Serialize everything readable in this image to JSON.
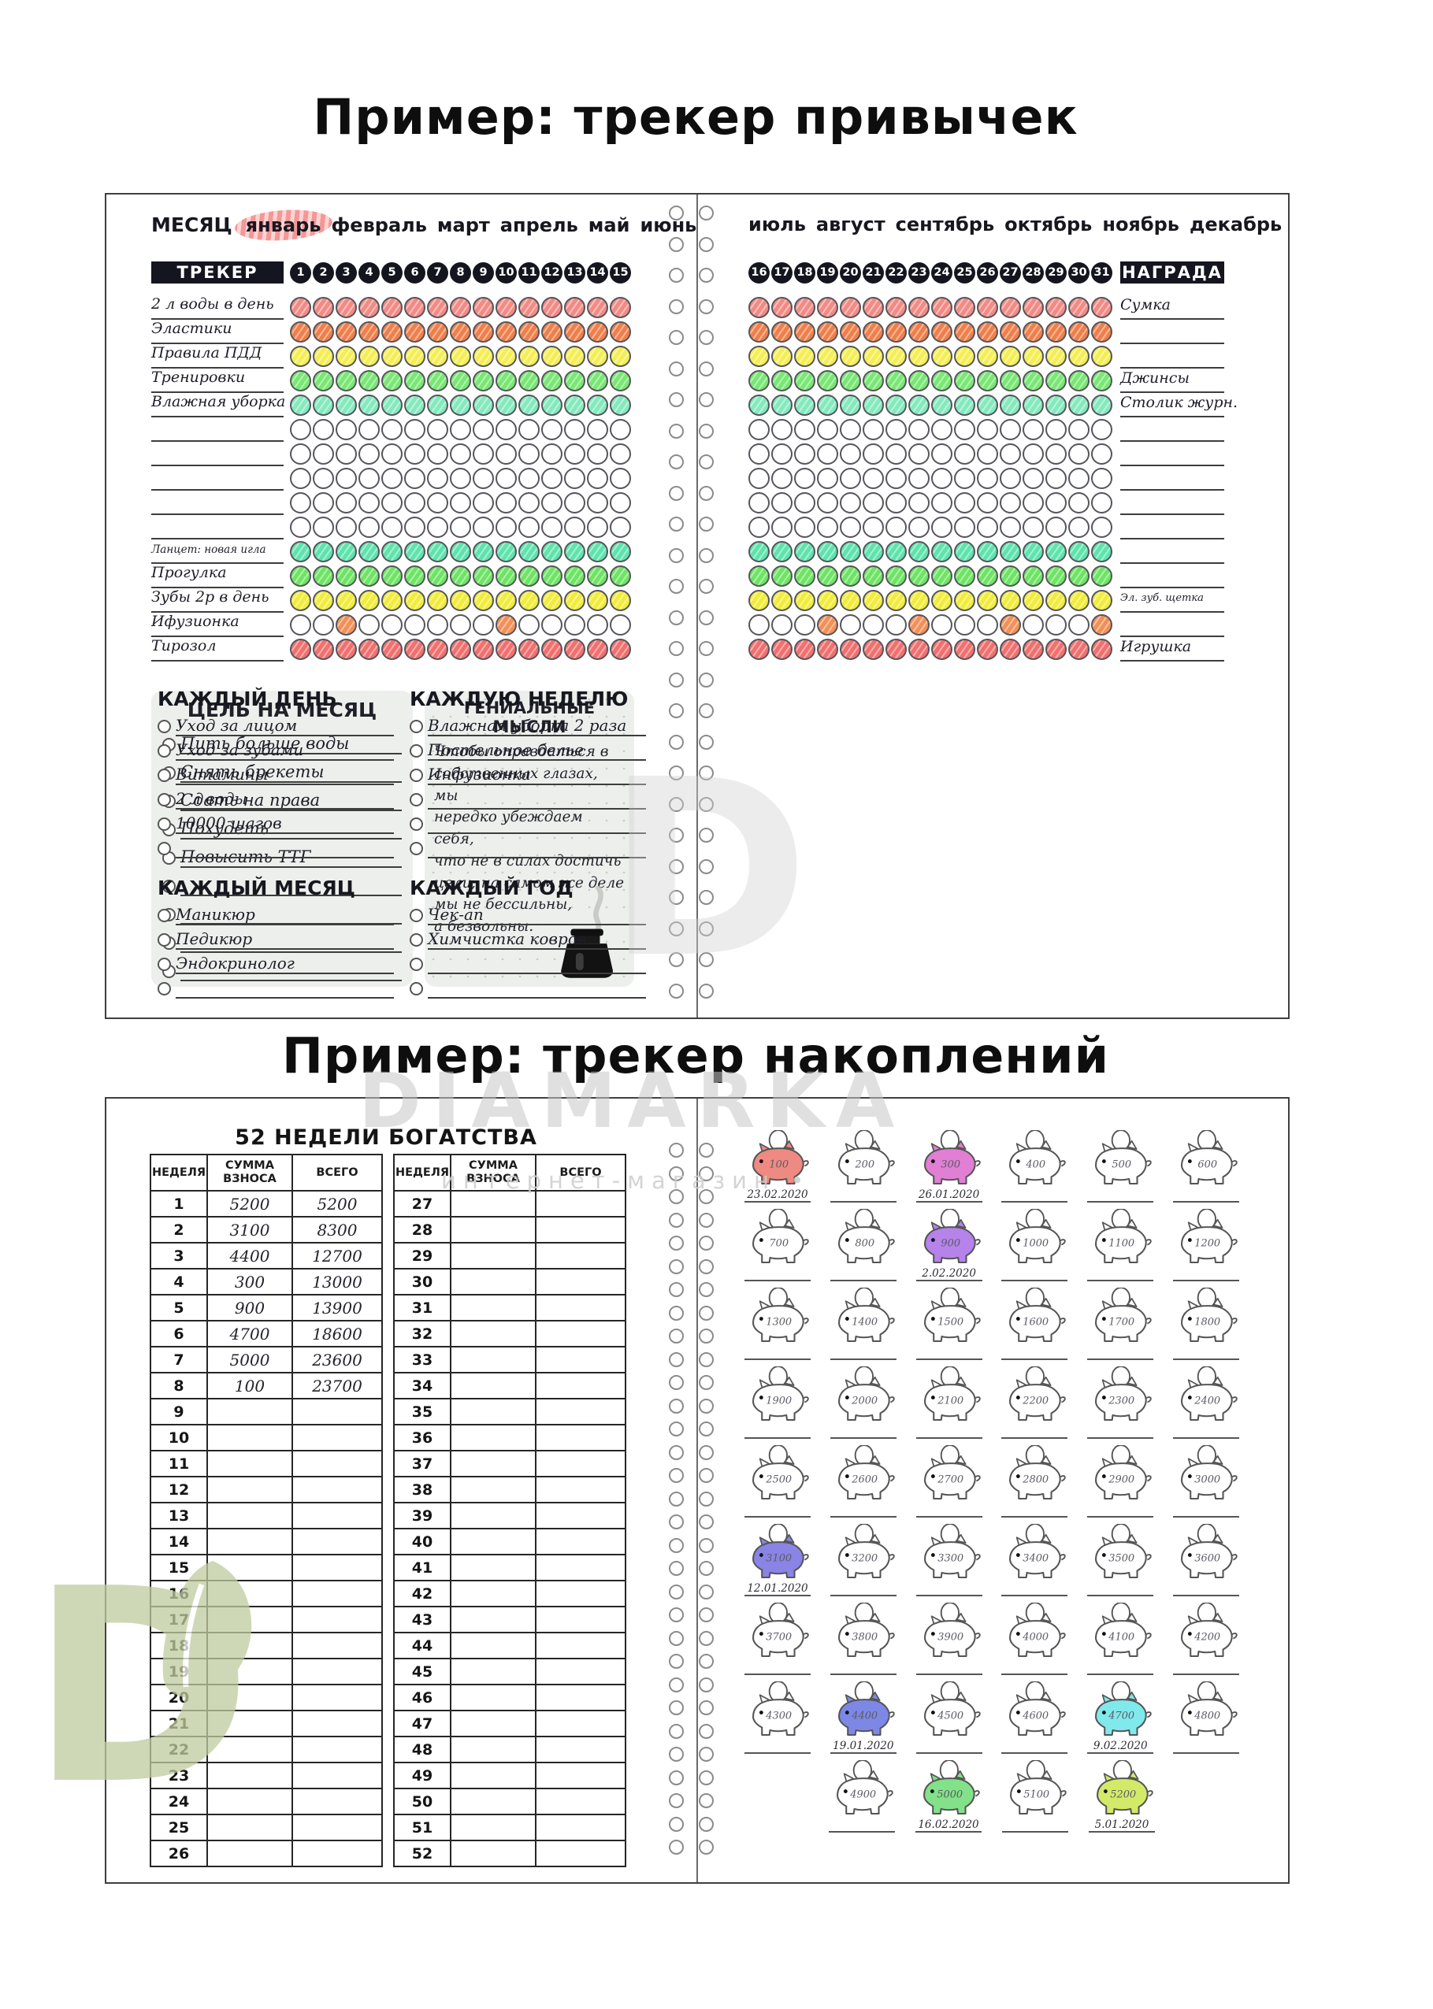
{
  "page": {
    "title_habit": "Пример: трекер привычек",
    "title_savings": "Пример: трекер накоплений"
  },
  "watermarks": {
    "brand": "DIAMARKA",
    "shop": "интернет-магазин •",
    "letter": "D"
  },
  "habit": {
    "month_label": "МЕСЯЦ",
    "months_left": [
      "январь",
      "февраль",
      "март",
      "апрель",
      "май",
      "июнь"
    ],
    "highlighted_month_index": 0,
    "highlight_color": "#f28282",
    "months_right": [
      "июль",
      "август",
      "сентябрь",
      "октябрь",
      "ноябрь",
      "декабрь"
    ],
    "tracker_label": "ТРЕКЕР",
    "award_label": "НАГРАДА",
    "days_left": [
      "1",
      "2",
      "3",
      "4",
      "5",
      "6",
      "7",
      "8",
      "9",
      "10",
      "11",
      "12",
      "13",
      "14",
      "15"
    ],
    "days_right": [
      "16",
      "17",
      "18",
      "19",
      "20",
      "21",
      "22",
      "23",
      "24",
      "25",
      "26",
      "27",
      "28",
      "29",
      "30",
      "31"
    ],
    "rows": [
      {
        "label": "2 л воды в день",
        "color": "#f28b85",
        "left": "all",
        "right": "all",
        "award": "Сумка"
      },
      {
        "label": "Эластики",
        "color": "#ef7f4a",
        "left": "all",
        "right": "all",
        "award": ""
      },
      {
        "label": "Правила ПДД",
        "color": "#f4ee55",
        "left": "all",
        "right": "all",
        "award": ""
      },
      {
        "label": "Тренировки",
        "color": "#79e774",
        "left": "all",
        "right": "all",
        "award": "Джинсы"
      },
      {
        "label": "Влажная уборка",
        "color": "#84eabd",
        "left": "all",
        "right": "all",
        "award": "Столик журн."
      },
      {
        "label": "",
        "color": "",
        "left": "none",
        "right": "none",
        "award": ""
      },
      {
        "label": "",
        "color": "",
        "left": "none",
        "right": "none",
        "award": ""
      },
      {
        "label": "",
        "color": "",
        "left": "none",
        "right": "none",
        "award": ""
      },
      {
        "label": "",
        "color": "",
        "left": "none",
        "right": "none",
        "award": ""
      },
      {
        "label": "",
        "color": "",
        "left": "none",
        "right": "none",
        "award": ""
      },
      {
        "label": "Ланцет: новая игла",
        "label_small": true,
        "color": "#5fe3ad",
        "left": "all",
        "right": "all",
        "award": ""
      },
      {
        "label": "Прогулка",
        "color": "#6ee464",
        "left": "all",
        "right": "all",
        "award": ""
      },
      {
        "label": "Зубы 2р в день",
        "color": "#f1ec3c",
        "left": "all",
        "right": "all",
        "award": "Эл. зуб. щетка",
        "award_small": true
      },
      {
        "label": "Ифузионка",
        "color": "#f29057",
        "left": [
          3,
          10
        ],
        "right": [
          4,
          8,
          12,
          16
        ],
        "award": ""
      },
      {
        "label": "Тирозол",
        "color": "#f1706e",
        "left": "all",
        "right": "all",
        "award": "Игрушка"
      }
    ],
    "goals": {
      "title": "ЦЕЛЬ НА МЕСЯЦ",
      "items": [
        "Пить больше воды",
        "Снять брекеты",
        "Сдать на права",
        "Похудеть",
        "Повысить ТТГ",
        "",
        "",
        "",
        ""
      ]
    },
    "thoughts": {
      "title": "ГЕНИАЛЬНЫЕ МЫСЛИ",
      "lines": [
        "Чтобы оправдаться в",
        "собственных глазах, мы",
        "нередко убеждаем себя,",
        "что не в силах достичь",
        "цели; на самом же деле",
        "мы не бессильны,",
        "а безвольны."
      ]
    },
    "sections": [
      {
        "title": "КАЖДЫЙ ДЕНЬ",
        "items": [
          "Уход за лицом",
          "Уход за зубами",
          "Витамины",
          "2 л воды",
          "10000 шагов",
          ""
        ]
      },
      {
        "title": "КАЖДУЮ НЕДЕЛЮ",
        "items": [
          "Влажная уборка 2 раза",
          "Постельное белье",
          "Инфузионка",
          "",
          "",
          ""
        ]
      },
      {
        "title": "КАЖДЫЙ МЕСЯЦ",
        "items": [
          "Маникюр",
          "Педикюр",
          "Эндокринолог",
          ""
        ]
      },
      {
        "title": "КАЖДЫЙ ГОД",
        "items": [
          "Чек-ап",
          "Химчистка ковров",
          "",
          ""
        ]
      }
    ]
  },
  "savings": {
    "title": "52 НЕДЕЛИ БОГАТСТВА",
    "columns": [
      "НЕДЕЛЯ",
      "СУММА ВЗНОСА",
      "ВСЕГО"
    ],
    "table1_rows": [
      {
        "week": "1",
        "deposit": "5200",
        "total": "5200"
      },
      {
        "week": "2",
        "deposit": "3100",
        "total": "8300"
      },
      {
        "week": "3",
        "deposit": "4400",
        "total": "12700"
      },
      {
        "week": "4",
        "deposit": "300",
        "total": "13000"
      },
      {
        "week": "5",
        "deposit": "900",
        "total": "13900"
      },
      {
        "week": "6",
        "deposit": "4700",
        "total": "18600"
      },
      {
        "week": "7",
        "deposit": "5000",
        "total": "23600"
      },
      {
        "week": "8",
        "deposit": "100",
        "total": "23700"
      },
      {
        "week": "9",
        "deposit": "",
        "total": ""
      },
      {
        "week": "10",
        "deposit": "",
        "total": ""
      },
      {
        "week": "11",
        "deposit": "",
        "total": ""
      },
      {
        "week": "12",
        "deposit": "",
        "total": ""
      },
      {
        "week": "13",
        "deposit": "",
        "total": ""
      },
      {
        "week": "14",
        "deposit": "",
        "total": ""
      },
      {
        "week": "15",
        "deposit": "",
        "total": ""
      },
      {
        "week": "16",
        "deposit": "",
        "total": ""
      },
      {
        "week": "17",
        "deposit": "",
        "total": ""
      },
      {
        "week": "18",
        "deposit": "",
        "total": ""
      },
      {
        "week": "19",
        "deposit": "",
        "total": ""
      },
      {
        "week": "20",
        "deposit": "",
        "total": ""
      },
      {
        "week": "21",
        "deposit": "",
        "total": ""
      },
      {
        "week": "22",
        "deposit": "",
        "total": ""
      },
      {
        "week": "23",
        "deposit": "",
        "total": ""
      },
      {
        "week": "24",
        "deposit": "",
        "total": ""
      },
      {
        "week": "25",
        "deposit": "",
        "total": ""
      },
      {
        "week": "26",
        "deposit": "",
        "total": ""
      }
    ],
    "table2_rows": [
      {
        "week": "27",
        "deposit": "",
        "total": ""
      },
      {
        "week": "28",
        "deposit": "",
        "total": ""
      },
      {
        "week": "29",
        "deposit": "",
        "total": ""
      },
      {
        "week": "30",
        "deposit": "",
        "total": ""
      },
      {
        "week": "31",
        "deposit": "",
        "total": ""
      },
      {
        "week": "32",
        "deposit": "",
        "total": ""
      },
      {
        "week": "33",
        "deposit": "",
        "total": ""
      },
      {
        "week": "34",
        "deposit": "",
        "total": ""
      },
      {
        "week": "35",
        "deposit": "",
        "total": ""
      },
      {
        "week": "36",
        "deposit": "",
        "total": ""
      },
      {
        "week": "37",
        "deposit": "",
        "total": ""
      },
      {
        "week": "38",
        "deposit": "",
        "total": ""
      },
      {
        "week": "39",
        "deposit": "",
        "total": ""
      },
      {
        "week": "40",
        "deposit": "",
        "total": ""
      },
      {
        "week": "41",
        "deposit": "",
        "total": ""
      },
      {
        "week": "42",
        "deposit": "",
        "total": ""
      },
      {
        "week": "43",
        "deposit": "",
        "total": ""
      },
      {
        "week": "44",
        "deposit": "",
        "total": ""
      },
      {
        "week": "45",
        "deposit": "",
        "total": ""
      },
      {
        "week": "46",
        "deposit": "",
        "total": ""
      },
      {
        "week": "47",
        "deposit": "",
        "total": ""
      },
      {
        "week": "48",
        "deposit": "",
        "total": ""
      },
      {
        "week": "49",
        "deposit": "",
        "total": ""
      },
      {
        "week": "50",
        "deposit": "",
        "total": ""
      },
      {
        "week": "51",
        "deposit": "",
        "total": ""
      },
      {
        "week": "52",
        "deposit": "",
        "total": ""
      }
    ],
    "pigs": [
      {
        "value": "100",
        "color": "#ee8a82",
        "date": "23.02.2020"
      },
      {
        "value": "200"
      },
      {
        "value": "300",
        "color": "#e07fd3",
        "date": "26.01.2020"
      },
      {
        "value": "400"
      },
      {
        "value": "500"
      },
      {
        "value": "600"
      },
      {
        "value": "700"
      },
      {
        "value": "800"
      },
      {
        "value": "900",
        "color": "#b583ea",
        "date": "2.02.2020"
      },
      {
        "value": "1000"
      },
      {
        "value": "1100"
      },
      {
        "value": "1200"
      },
      {
        "value": "1300"
      },
      {
        "value": "1400"
      },
      {
        "value": "1500"
      },
      {
        "value": "1600"
      },
      {
        "value": "1700"
      },
      {
        "value": "1800"
      },
      {
        "value": "1900"
      },
      {
        "value": "2000"
      },
      {
        "value": "2100"
      },
      {
        "value": "2200"
      },
      {
        "value": "2300"
      },
      {
        "value": "2400"
      },
      {
        "value": "2500"
      },
      {
        "value": "2600"
      },
      {
        "value": "2700"
      },
      {
        "value": "2800"
      },
      {
        "value": "2900"
      },
      {
        "value": "3000"
      },
      {
        "value": "3100",
        "color": "#8a84e6",
        "date": "12.01.2020"
      },
      {
        "value": "3200"
      },
      {
        "value": "3300"
      },
      {
        "value": "3400"
      },
      {
        "value": "3500"
      },
      {
        "value": "3600"
      },
      {
        "value": "3700"
      },
      {
        "value": "3800"
      },
      {
        "value": "3900"
      },
      {
        "value": "4000"
      },
      {
        "value": "4100"
      },
      {
        "value": "4200"
      },
      {
        "value": "4300"
      },
      {
        "value": "4400",
        "color": "#7d88e6",
        "date": "19.01.2020"
      },
      {
        "value": "4500"
      },
      {
        "value": "4600"
      },
      {
        "value": "4700",
        "color": "#80e9ec",
        "date": "9.02.2020"
      },
      {
        "value": "4800"
      },
      {
        "value": "4900"
      },
      {
        "value": "5000",
        "color": "#82e189",
        "date": "16.02.2020"
      },
      {
        "value": "5100"
      },
      {
        "value": "5200",
        "color": "#d3ea69",
        "date": "5.01.2020"
      }
    ]
  }
}
